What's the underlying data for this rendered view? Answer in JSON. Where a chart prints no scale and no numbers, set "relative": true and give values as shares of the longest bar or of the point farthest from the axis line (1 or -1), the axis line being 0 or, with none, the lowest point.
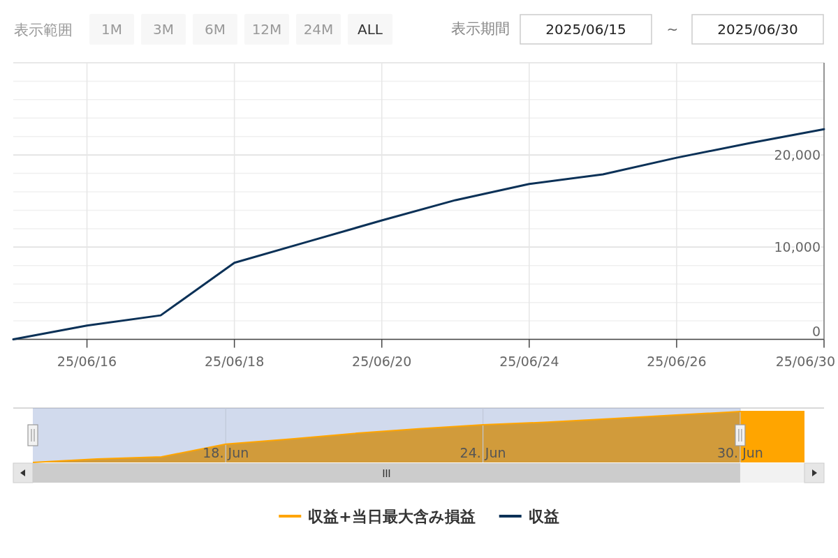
{
  "chart_data": [
    {
      "type": "line",
      "annotations": [
        "表示範囲",
        "1M",
        "3M",
        "6M",
        "12M",
        "24M",
        "ALL",
        "表示期間",
        "2025/06/15",
        "~",
        "2025/06/30"
      ],
      "categories": [
        null,
        "25/06/16",
        null,
        "25/06/18",
        null,
        "25/06/20",
        null,
        "25/06/24",
        null,
        "25/06/26",
        null,
        "25/06/30"
      ],
      "series": [
        {
          "name": "収益+当日最大含み損益",
          "color": "#ffa500",
          "values": [
            null,
            null,
            null,
            null,
            null,
            null,
            null,
            null,
            null,
            null,
            null,
            null
          ]
        },
        {
          "name": "収益",
          "color": "#0b3157",
          "values": [
            0,
            1500,
            2600,
            8300,
            10600,
            12900,
            15100,
            16850,
            17900,
            19700,
            21300,
            22800
          ]
        }
      ],
      "ylim": [
        0,
        30000
      ],
      "yticks": [
        0,
        {
          "value": 10000,
          "label": "10,000"
        },
        {
          "value": 20000,
          "label": "20,000"
        }
      ],
      "grid": true,
      "legend": "bottom"
    },
    {
      "type": "area",
      "relative": true,
      "categories": [
        null,
        null,
        null,
        "18. Jun",
        null,
        null,
        null,
        "24. Jun",
        null,
        null,
        null,
        "30. Jun",
        null
      ],
      "values": [
        0,
        0.07,
        0.11,
        0.36,
        0.46,
        0.57,
        0.66,
        0.74,
        0.79,
        0.86,
        0.93,
        1,
        1
      ],
      "color": "#ffa500",
      "grid": "x"
    }
  ]
}
